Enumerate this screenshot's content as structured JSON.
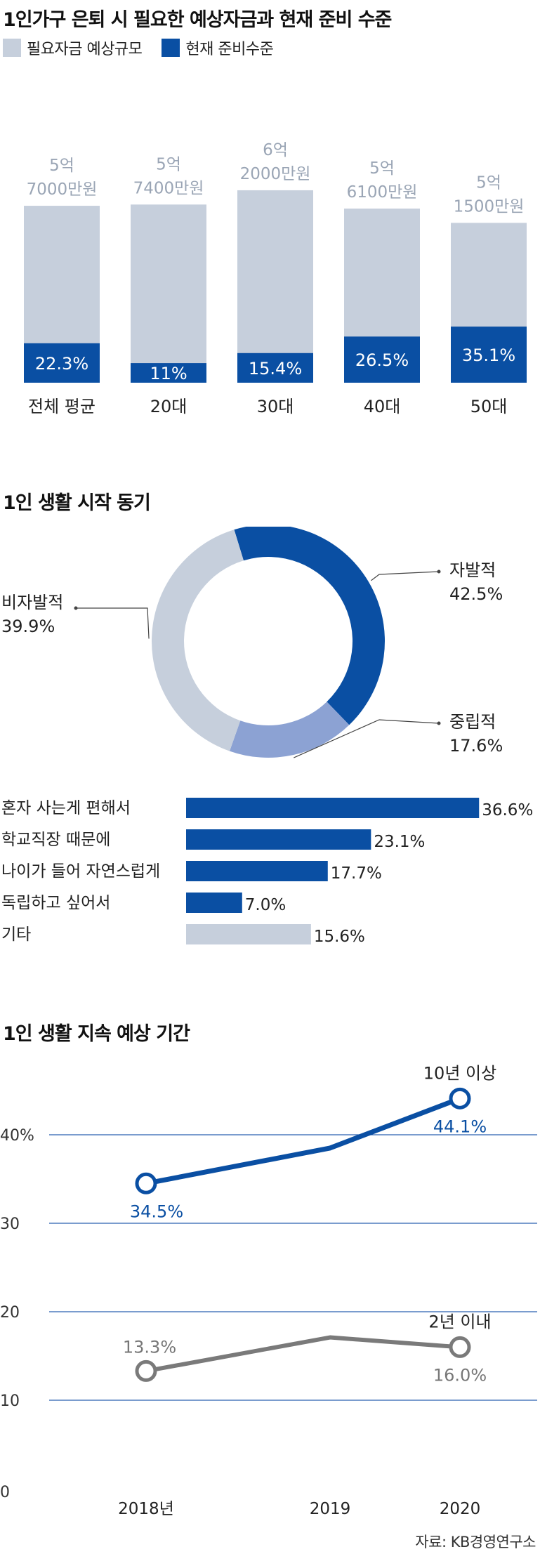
{
  "colors": {
    "navy": "#0a4fa3",
    "light": "#c6cfdc",
    "mid": "#8ca2d3",
    "gray": "#7a7a7a",
    "grid": "#2b62b0"
  },
  "chart_data": [
    {
      "type": "bar",
      "title": "1인가구 은퇴 시 필요한 예상자금과 현재 준비 수준",
      "legend": [
        "필요자금 예상규모",
        "현재 준비수준"
      ],
      "categories": [
        "전체 평균",
        "20대",
        "30대",
        "40대",
        "50대"
      ],
      "required_labels": [
        [
          "5억",
          "7000만원"
        ],
        [
          "5억",
          "7400만원"
        ],
        [
          "6억",
          "2000만원"
        ],
        [
          "5억",
          "6100만원"
        ],
        [
          "5억",
          "1500만원"
        ]
      ],
      "required_values": [
        5.7,
        5.74,
        6.2,
        5.61,
        5.15
      ],
      "prepared_pct": [
        22.3,
        11,
        15.4,
        26.5,
        35.1
      ],
      "prepared_labels": [
        "22.3%",
        "11%",
        "15.4%",
        "26.5%",
        "35.1%"
      ]
    },
    {
      "type": "pie",
      "title": "1인 생활 시작 동기",
      "labels": [
        "자발적",
        "중립적",
        "비자발적"
      ],
      "values": [
        42.5,
        17.6,
        39.9
      ],
      "value_labels": [
        "42.5%",
        "17.6%",
        "39.9%"
      ]
    },
    {
      "type": "bar",
      "orientation": "horizontal",
      "categories": [
        "혼자 사는게 편해서",
        "학교직장 때문에",
        "나이가 들어 자연스럽게",
        "독립하고 싶어서",
        "기타"
      ],
      "values": [
        36.6,
        23.1,
        17.7,
        7.0,
        15.6
      ],
      "value_labels": [
        "36.6%",
        "23.1%",
        "17.7%",
        "7.0%",
        "15.6%"
      ]
    },
    {
      "type": "line",
      "title": "1인 생활 지속 예상 기간",
      "x": [
        "2018년",
        "2019",
        "2020"
      ],
      "yticks": [
        "0",
        "10",
        "20",
        "30",
        "40%"
      ],
      "ylim": [
        0,
        50
      ],
      "series": [
        {
          "name": "10년 이상",
          "values": [
            34.5,
            38.5,
            44.1
          ],
          "value_labels": [
            "34.5%",
            "",
            "44.1%"
          ]
        },
        {
          "name": "2년 이내",
          "values": [
            13.3,
            17.1,
            16.0
          ],
          "value_labels": [
            "13.3%",
            "",
            "16.0%"
          ]
        }
      ]
    }
  ],
  "source": "자료: KB경영연구소"
}
